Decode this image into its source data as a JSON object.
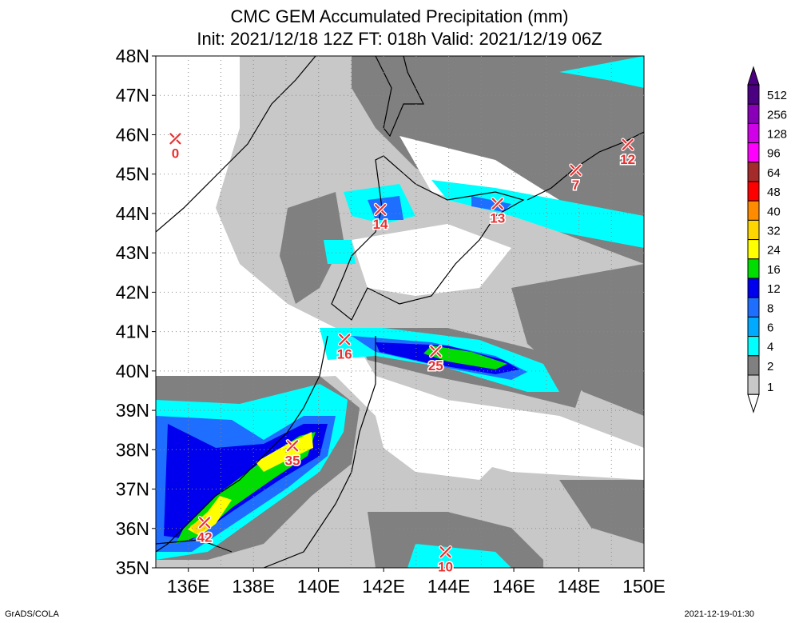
{
  "title_line1": "CMC GEM Accumulated Precipitation (mm)",
  "title_line2": "Init: 2021/12/18 12Z  FT: 018h  Valid: 2021/12/19 06Z",
  "footer_left": "GrADS/COLA",
  "footer_right": "2021-12-19-01:30",
  "map": {
    "lon_min": 135,
    "lon_max": 150,
    "lat_min": 35,
    "lat_max": 48,
    "lat_labels": [
      "48N",
      "47N",
      "46N",
      "45N",
      "44N",
      "43N",
      "42N",
      "41N",
      "40N",
      "39N",
      "38N",
      "37N",
      "36N",
      "35N"
    ],
    "lon_labels": [
      "136E",
      "138E",
      "140E",
      "142E",
      "144E",
      "146E",
      "148E",
      "150E"
    ],
    "gridlines": "dotted"
  },
  "legend": [
    {
      "label": "512",
      "color": "#4b0082"
    },
    {
      "label": "256",
      "color": "#8a00b8"
    },
    {
      "label": "128",
      "color": "#d000e8"
    },
    {
      "label": "96",
      "color": "#ff00ff"
    },
    {
      "label": "64",
      "color": "#a52a2a"
    },
    {
      "label": "48",
      "color": "#ff0000"
    },
    {
      "label": "40",
      "color": "#ff8c00"
    },
    {
      "label": "32",
      "color": "#ffd700"
    },
    {
      "label": "24",
      "color": "#ffff00"
    },
    {
      "label": "16",
      "color": "#00dd00"
    },
    {
      "label": "12",
      "color": "#0000ee"
    },
    {
      "label": "8",
      "color": "#1e6eff"
    },
    {
      "label": "6",
      "color": "#00aaff"
    },
    {
      "label": "4",
      "color": "#00ffff"
    },
    {
      "label": "2",
      "color": "#808080"
    },
    {
      "label": "1",
      "color": "#c8c8c8"
    }
  ],
  "stations": [
    {
      "lon": 135.6,
      "lat": 45.9,
      "value": "0"
    },
    {
      "lon": 141.9,
      "lat": 44.1,
      "value": "14"
    },
    {
      "lon": 145.5,
      "lat": 44.25,
      "value": "13"
    },
    {
      "lon": 147.9,
      "lat": 45.1,
      "value": "7"
    },
    {
      "lon": 149.5,
      "lat": 45.75,
      "value": "12"
    },
    {
      "lon": 140.8,
      "lat": 40.8,
      "value": "16"
    },
    {
      "lon": 143.6,
      "lat": 40.5,
      "value": "25"
    },
    {
      "lon": 139.2,
      "lat": 38.1,
      "value": "35"
    },
    {
      "lon": 136.5,
      "lat": 36.15,
      "value": "42"
    },
    {
      "lon": 143.9,
      "lat": 35.4,
      "value": "10"
    }
  ]
}
